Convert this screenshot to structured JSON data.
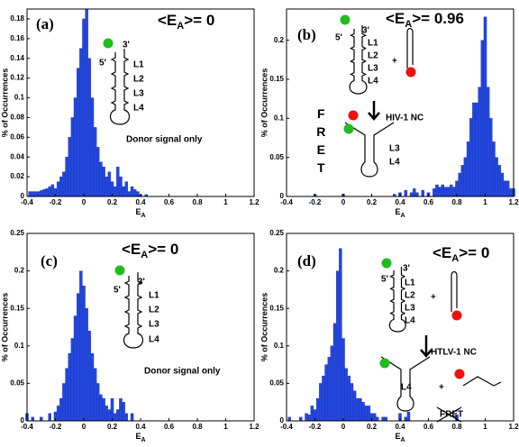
{
  "chart_data": [
    {
      "type": "bar",
      "panel_label": "(a)",
      "stat": {
        "prefix": "<E",
        "sub": "A",
        "suffix": ">= 0"
      },
      "color": "#2247e0",
      "annotations": [
        "5'",
        "3'",
        "L1",
        "L2",
        "L3",
        "L4",
        "Donor signal only"
      ],
      "xlabel": {
        "main": "E",
        "sub": "A"
      },
      "ylabel": "% of Occurrences",
      "xlim": [
        -0.4,
        1.2
      ],
      "xticks": [
        -0.4,
        -0.2,
        0,
        0.2,
        0.4,
        0.6,
        0.8,
        1,
        1.2
      ],
      "ylim": [
        0,
        0.19
      ],
      "yticks": [
        0,
        0.02,
        0.04,
        0.06,
        0.08,
        0.1,
        0.12,
        0.14,
        0.16,
        0.18
      ],
      "x": [
        -0.38,
        -0.36,
        -0.34,
        -0.32,
        -0.3,
        -0.28,
        -0.26,
        -0.24,
        -0.22,
        -0.2,
        -0.18,
        -0.16,
        -0.14,
        -0.12,
        -0.1,
        -0.08,
        -0.06,
        -0.04,
        -0.02,
        0,
        0.02,
        0.04,
        0.06,
        0.08,
        0.1,
        0.12,
        0.14,
        0.16,
        0.18,
        0.2,
        0.22,
        0.24,
        0.26,
        0.28,
        0.3,
        0.32,
        0.34,
        0.36,
        0.38,
        0.4,
        0.44
      ],
      "values": [
        0.005,
        0.005,
        0.005,
        0.005,
        0.006,
        0.007,
        0.008,
        0.01,
        0.012,
        0.008,
        0.015,
        0.02,
        0.025,
        0.04,
        0.06,
        0.08,
        0.1,
        0.13,
        0.15,
        0.18,
        0.19,
        0.14,
        0.1,
        0.07,
        0.05,
        0.035,
        0.03,
        0.02,
        0.025,
        0.015,
        0.01,
        0.03,
        0.02,
        0.01,
        0.015,
        0.005,
        0.01,
        0.007,
        0.005,
        0.002,
        0.002
      ]
    },
    {
      "type": "bar",
      "panel_label": "(b)",
      "stat": {
        "prefix": "<E",
        "sub": "A",
        "suffix": ">= 0.96"
      },
      "color": "#2247e0",
      "annotations": [
        "5'",
        "3'",
        "L1",
        "L2",
        "L3",
        "L4",
        "+",
        "HIV-1 NC",
        "FRET",
        "L3",
        "L4"
      ],
      "xlabel": {
        "main": "E",
        "sub": "A"
      },
      "ylabel": "% of Occurrences",
      "xlim": [
        -0.4,
        1.2
      ],
      "xticks": [
        -0.4,
        -0.2,
        0,
        0.2,
        0.4,
        0.6,
        0.8,
        1,
        1.2
      ],
      "ylim": [
        0,
        0.24
      ],
      "yticks": [
        0,
        0.05,
        0.1,
        0.15,
        0.2
      ],
      "x": [
        -0.2,
        0,
        0.36,
        0.4,
        0.44,
        0.48,
        0.5,
        0.52,
        0.56,
        0.6,
        0.64,
        0.66,
        0.68,
        0.7,
        0.72,
        0.74,
        0.76,
        0.78,
        0.8,
        0.82,
        0.84,
        0.86,
        0.88,
        0.9,
        0.92,
        0.94,
        0.96,
        0.98,
        1,
        1.02,
        1.04,
        1.06,
        1.08,
        1.1,
        1.12,
        1.14,
        1.16,
        1.18,
        1.2
      ],
      "values": [
        0.003,
        0.003,
        0.003,
        0.005,
        0.008,
        0.005,
        0.01,
        0.005,
        0.008,
        0.005,
        0.01,
        0.015,
        0.012,
        0.015,
        0.012,
        0.012,
        0.015,
        0.012,
        0.02,
        0.03,
        0.04,
        0.05,
        0.07,
        0.1,
        0.12,
        0.12,
        0.14,
        0.2,
        0.23,
        0.14,
        0.1,
        0.07,
        0.05,
        0.04,
        0.03,
        0.02,
        0.02,
        0.01,
        0.01
      ]
    },
    {
      "type": "bar",
      "panel_label": "(c)",
      "stat": {
        "prefix": "<E",
        "sub": "A",
        "suffix": ">= 0"
      },
      "color": "#2247e0",
      "annotations": [
        "5'",
        "3'",
        "L1",
        "L2",
        "L3",
        "L4",
        "Donor signal only"
      ],
      "xlabel": {
        "main": "E",
        "sub": "A"
      },
      "ylabel": "% of Occurrences",
      "xlim": [
        -0.4,
        1.2
      ],
      "xticks": [
        -0.4,
        -0.2,
        0,
        0.2,
        0.4,
        0.6,
        0.8,
        1,
        1.2
      ],
      "ylim": [
        0,
        0.25
      ],
      "yticks": [
        0,
        0.05,
        0.1,
        0.15,
        0.2,
        0.25
      ],
      "x": [
        -0.4,
        -0.36,
        -0.3,
        -0.24,
        -0.2,
        -0.18,
        -0.16,
        -0.14,
        -0.12,
        -0.1,
        -0.08,
        -0.06,
        -0.04,
        -0.02,
        0,
        0.02,
        0.04,
        0.06,
        0.08,
        0.1,
        0.12,
        0.14,
        0.16,
        0.18,
        0.2,
        0.22,
        0.24,
        0.26,
        0.28,
        0.3,
        0.34
      ],
      "values": [
        0.01,
        0.005,
        0.005,
        0.01,
        0.012,
        0.02,
        0.03,
        0.05,
        0.07,
        0.09,
        0.11,
        0.14,
        0.17,
        0.2,
        0.18,
        0.15,
        0.12,
        0.09,
        0.07,
        0.05,
        0.035,
        0.03,
        0.02,
        0.015,
        0.03,
        0.01,
        0.015,
        0.03,
        0.025,
        0.01,
        0.01
      ]
    },
    {
      "type": "bar",
      "panel_label": "(d)",
      "stat": {
        "prefix": "<E",
        "sub": "A",
        "suffix": ">= 0"
      },
      "color": "#2247e0",
      "annotations": [
        "5'",
        "3'",
        "L1",
        "L2",
        "L3",
        "L4",
        "+",
        "HTLV-1 NC",
        "L4",
        "+",
        "FRET"
      ],
      "xlabel": {
        "main": "E",
        "sub": "A"
      },
      "ylabel": "% of Occurrences",
      "xlim": [
        -0.4,
        1.2
      ],
      "xticks": [
        -0.4,
        -0.2,
        0,
        0.2,
        0.4,
        0.6,
        0.8,
        1,
        1.2
      ],
      "ylim": [
        0,
        0.25
      ],
      "yticks": [
        0,
        0.05,
        0.1,
        0.15,
        0.2,
        0.25
      ],
      "x": [
        -0.38,
        -0.3,
        -0.26,
        -0.24,
        -0.22,
        -0.2,
        -0.18,
        -0.16,
        -0.14,
        -0.12,
        -0.1,
        -0.08,
        -0.06,
        -0.04,
        -0.02,
        0,
        0.02,
        0.04,
        0.06,
        0.08,
        0.1,
        0.12,
        0.14,
        0.16,
        0.18,
        0.2,
        0.22,
        0.24,
        0.28,
        0.3,
        0.4,
        0.44,
        0.46,
        0.8
      ],
      "values": [
        0.005,
        0.005,
        0.01,
        0.008,
        0.02,
        0.015,
        0.03,
        0.05,
        0.06,
        0.075,
        0.085,
        0.1,
        0.13,
        0.2,
        0.23,
        0.11,
        0.07,
        0.06,
        0.05,
        0.04,
        0.03,
        0.03,
        0.025,
        0.02,
        0.02,
        0.01,
        0.01,
        0.005,
        0.005,
        0.005,
        0.01,
        0.005,
        0.012,
        0.008
      ]
    }
  ]
}
